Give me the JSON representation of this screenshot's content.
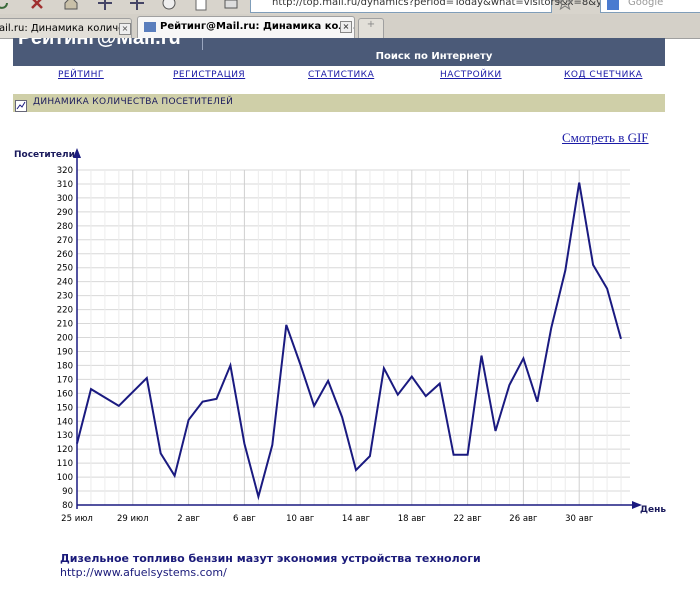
{
  "browser": {
    "url": "http://top.mail.ru/dynamics?period=Today&what=visitors&x=8&y=",
    "search_placeholder": "Google",
    "tabs": [
      {
        "label": "ail.ru: Динамика количес..."
      },
      {
        "label": "Рейтинг@Mail.ru: Динамика коли..."
      }
    ],
    "new_tab": "+"
  },
  "site": {
    "logo": "Рейтинг@Mail.ru",
    "search_label": "Поиск по Интернету",
    "nav": [
      "РЕЙТИНГ",
      "РЕГИСТРАЦИЯ",
      "СТАТИСТИКА",
      "НАСТРОЙКИ",
      "КОД СЧЕТЧИКА"
    ],
    "section_title": "ДИНАМИКА КОЛИЧЕСТВА ПОСЕТИТЕЛЕЙ",
    "gif_link": "Смотреть в GIF"
  },
  "ad": {
    "title": "Дизельное топливо бензин мазут экономия устройства технологи",
    "url": "http://www.afuelsystems.com/"
  },
  "chart_data": {
    "type": "line",
    "ylabel": "Посетители",
    "xlabel": "День",
    "ylim": [
      80,
      320
    ],
    "y_ticks": [
      80,
      90,
      100,
      110,
      120,
      130,
      140,
      150,
      160,
      170,
      180,
      190,
      200,
      210,
      220,
      230,
      240,
      250,
      260,
      270,
      280,
      290,
      300,
      310,
      320
    ],
    "x_tick_labels": [
      "25 июл",
      "29 июл",
      "2 авг",
      "6 авг",
      "10 авг",
      "14 авг",
      "18 авг",
      "22 авг",
      "26 авг",
      "30 авг"
    ],
    "grid": true,
    "color": "#1a1a80",
    "values": [
      124,
      163,
      157,
      151,
      161,
      171,
      117,
      101,
      141,
      154,
      156,
      180,
      124,
      86,
      123,
      209,
      181,
      151,
      169,
      143,
      105,
      115,
      178,
      159,
      172,
      158,
      167,
      116,
      116,
      187,
      133,
      166,
      185,
      154,
      207,
      248,
      311,
      252,
      235,
      199
    ]
  }
}
